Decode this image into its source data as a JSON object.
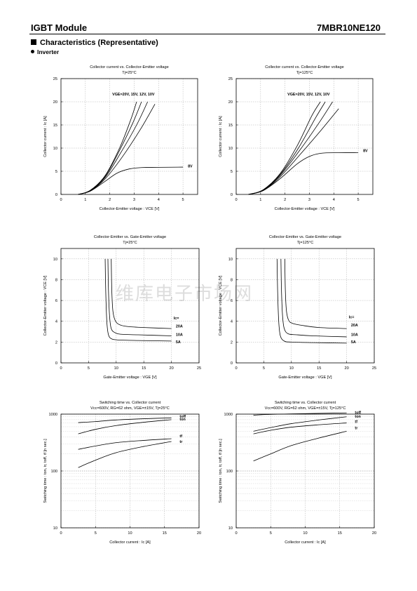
{
  "header": {
    "title": "IGBT Module",
    "part_number": "7MBR10NE120"
  },
  "section": {
    "title": "Characteristics (Representative)",
    "subtitle": "Inverter"
  },
  "watermark": "维库电子市场网",
  "chart_data": [
    {
      "type": "line",
      "title": "Collector current  vs.  Collector-Emitter  voltage",
      "subtitle": "Tj=25°C",
      "xlabel": "Collector-Emitter  voltage  :  VCE [V]",
      "ylabel": "Collector  current  :  Ic [A]",
      "xlim": [
        0,
        5.6
      ],
      "ylim": [
        0,
        25
      ],
      "xticks": [
        0,
        1,
        2,
        3,
        4,
        5
      ],
      "yticks": [
        0,
        5,
        10,
        15,
        20,
        25
      ],
      "grid": true,
      "yscale": "linear",
      "annotations": [
        {
          "text": "VGE=20V, 15V, 12V, 10V",
          "x": 2.1,
          "y": 21.4
        },
        {
          "text": "8V",
          "x": 5.2,
          "y": 5.8
        }
      ],
      "series": [
        {
          "label": "20V",
          "x": [
            0.7,
            1.2,
            1.8,
            2.4,
            2.85,
            3.1
          ],
          "y": [
            0,
            0.9,
            4,
            10,
            16,
            20
          ]
        },
        {
          "label": "15V",
          "x": [
            0.7,
            1.2,
            1.8,
            2.4,
            2.95,
            3.3
          ],
          "y": [
            0,
            0.85,
            3.8,
            9.5,
            15.5,
            20
          ]
        },
        {
          "label": "12V",
          "x": [
            0.7,
            1.2,
            1.8,
            2.45,
            3.1,
            3.55
          ],
          "y": [
            0,
            0.8,
            3.6,
            9,
            15,
            20
          ]
        },
        {
          "label": "10V",
          "x": [
            0.7,
            1.2,
            1.8,
            2.5,
            3.25,
            3.85
          ],
          "y": [
            0,
            0.75,
            3.3,
            8,
            14,
            19.5
          ]
        },
        {
          "label": "8V",
          "x": [
            0.7,
            1.2,
            1.8,
            2.3,
            2.8,
            3.3,
            4.0,
            5.0
          ],
          "y": [
            0,
            0.7,
            2.8,
            4.6,
            5.5,
            5.8,
            5.85,
            5.9
          ]
        }
      ]
    },
    {
      "type": "line",
      "title": "Collector current  vs.  Collector-Emitter  voltage",
      "subtitle": "Tj=125°C",
      "xlabel": "Collector-Emitter  voltage  :  VCE [V]",
      "ylabel": "Collector  current  :  Ic [A]",
      "xlim": [
        0,
        5.6
      ],
      "ylim": [
        0,
        25
      ],
      "xticks": [
        0,
        1,
        2,
        3,
        4,
        5
      ],
      "yticks": [
        0,
        5,
        10,
        15,
        20,
        25
      ],
      "grid": true,
      "yscale": "linear",
      "annotations": [
        {
          "text": "VGE=20V, 15V, 12V, 10V",
          "x": 2.1,
          "y": 21.4
        },
        {
          "text": "8V",
          "x": 5.2,
          "y": 9.2
        }
      ],
      "series": [
        {
          "label": "20V",
          "x": [
            0.5,
            1.1,
            1.8,
            2.5,
            3.1,
            3.45
          ],
          "y": [
            0,
            1,
            4.5,
            10.5,
            17,
            20
          ]
        },
        {
          "label": "15V",
          "x": [
            0.5,
            1.1,
            1.8,
            2.55,
            3.25,
            3.65
          ],
          "y": [
            0,
            0.95,
            4.3,
            10,
            16.5,
            20
          ]
        },
        {
          "label": "12V",
          "x": [
            0.5,
            1.1,
            1.8,
            2.6,
            3.4,
            3.95
          ],
          "y": [
            0,
            0.9,
            4.1,
            9.5,
            15.5,
            20
          ]
        },
        {
          "label": "10V",
          "x": [
            0.5,
            1.1,
            1.8,
            2.65,
            3.5,
            4.2
          ],
          "y": [
            0,
            0.85,
            3.8,
            8.8,
            14,
            18.5
          ]
        },
        {
          "label": "8V",
          "x": [
            0.5,
            1.1,
            1.8,
            2.5,
            3.0,
            3.5,
            4.2,
            5.0
          ],
          "y": [
            0,
            0.8,
            3.4,
            6.6,
            8.2,
            8.9,
            9.0,
            9.0
          ]
        }
      ]
    },
    {
      "type": "line",
      "title": "Collector-Emitter  vs.  Gate-Emitter  voltage",
      "subtitle": "Tj=25°C",
      "xlabel": "Gate-Emitter  voltage  :  VGE [V]",
      "ylabel": "Collector-Emitter  voltage  :  VCE [V]",
      "xlim": [
        0,
        25
      ],
      "ylim": [
        0,
        11
      ],
      "xticks": [
        0,
        5,
        10,
        15,
        20,
        25
      ],
      "yticks": [
        0,
        2,
        4,
        6,
        8,
        10
      ],
      "grid": true,
      "yscale": "linear",
      "annotations": [
        {
          "text": "Ic=",
          "x": 20.4,
          "y": 4.2
        },
        {
          "text": "20A",
          "x": 20.8,
          "y": 3.4
        },
        {
          "text": "10A",
          "x": 20.8,
          "y": 2.6
        },
        {
          "text": "5A",
          "x": 20.8,
          "y": 1.9
        }
      ],
      "series": [
        {
          "label": "20A",
          "x": [
            9.1,
            9.2,
            9.4,
            9.8,
            10.5,
            12,
            15,
            20
          ],
          "y": [
            10,
            7,
            5,
            4.1,
            3.7,
            3.5,
            3.4,
            3.3
          ]
        },
        {
          "label": "10A",
          "x": [
            8.5,
            8.6,
            8.8,
            9.1,
            9.8,
            11,
            14,
            20
          ],
          "y": [
            10,
            7,
            4.5,
            3.3,
            2.9,
            2.75,
            2.7,
            2.6
          ]
        },
        {
          "label": "5A",
          "x": [
            8.0,
            8.1,
            8.3,
            8.6,
            9.2,
            10.5,
            14,
            20
          ],
          "y": [
            10,
            7,
            4,
            2.7,
            2.3,
            2.2,
            2.15,
            2.1
          ]
        }
      ]
    },
    {
      "type": "line",
      "title": "Collector-Emitter  vs.  Gate-Emitter  voltage",
      "subtitle": "Tj=125°C",
      "xlabel": "Gate-Emitter  voltage  :  VGE [V]",
      "ylabel": "Collector-Emitter  voltage  :  VCE [V]",
      "xlim": [
        0,
        25
      ],
      "ylim": [
        0,
        11
      ],
      "xticks": [
        0,
        5,
        10,
        15,
        20,
        25
      ],
      "yticks": [
        0,
        2,
        4,
        6,
        8,
        10
      ],
      "grid": true,
      "yscale": "linear",
      "annotations": [
        {
          "text": "Ic=",
          "x": 20.4,
          "y": 4.3
        },
        {
          "text": "20A",
          "x": 20.8,
          "y": 3.5
        },
        {
          "text": "10A",
          "x": 20.8,
          "y": 2.6
        },
        {
          "text": "5A",
          "x": 20.8,
          "y": 1.9
        }
      ],
      "series": [
        {
          "label": "20A",
          "x": [
            8.8,
            8.9,
            9.1,
            9.5,
            10.2,
            12,
            15,
            20
          ],
          "y": [
            10,
            7,
            5,
            4.1,
            3.8,
            3.6,
            3.4,
            3.3
          ]
        },
        {
          "label": "10A",
          "x": [
            8.1,
            8.2,
            8.4,
            8.7,
            9.4,
            11,
            14,
            20
          ],
          "y": [
            10,
            7,
            4.5,
            3.3,
            2.8,
            2.7,
            2.6,
            2.5
          ]
        },
        {
          "label": "5A",
          "x": [
            7.4,
            7.5,
            7.7,
            8.0,
            8.7,
            10,
            14,
            20
          ],
          "y": [
            10,
            7,
            4,
            2.6,
            2.1,
            2.0,
            1.95,
            1.9
          ]
        }
      ]
    },
    {
      "type": "line",
      "title": "Switching time  vs. Collector current",
      "subtitle": "Vcc=600V, RG=62 ohm, VGE=±15V, Tj=25°C",
      "xlabel": "Collector  current  :  Ic [A]",
      "ylabel": "Switching  time  :  ton, tr, toff, tf  [n sec.]",
      "xlim": [
        0,
        20
      ],
      "ylim": [
        10,
        1000
      ],
      "xticks": [
        0,
        5,
        10,
        15,
        20
      ],
      "yticks": [
        10,
        100,
        1000
      ],
      "grid": true,
      "yscale": "log",
      "annotations": [
        {
          "text": "toff",
          "x": 17.2,
          "y": 870
        },
        {
          "text": "ton",
          "x": 17.2,
          "y": 770
        },
        {
          "text": "tf",
          "x": 17.2,
          "y": 390
        },
        {
          "text": "tr",
          "x": 17.2,
          "y": 310
        }
      ],
      "series": [
        {
          "label": "toff",
          "x": [
            2.5,
            5,
            8,
            12,
            16
          ],
          "y": [
            710,
            740,
            790,
            830,
            860
          ]
        },
        {
          "label": "ton",
          "x": [
            2.5,
            5,
            8,
            12,
            16
          ],
          "y": [
            450,
            540,
            630,
            720,
            800
          ]
        },
        {
          "label": "tf",
          "x": [
            2.5,
            5,
            8,
            12,
            16
          ],
          "y": [
            240,
            275,
            315,
            345,
            370
          ]
        },
        {
          "label": "tr",
          "x": [
            2.5,
            5,
            8,
            12,
            16
          ],
          "y": [
            115,
            155,
            210,
            270,
            330
          ]
        }
      ]
    },
    {
      "type": "line",
      "title": "Switching time  vs. Collector current",
      "subtitle": "Vcc=600V, RG=62 ohm, VGE=±15V, Tj=125°C",
      "xlabel": "Collector  current  :  Ic [A]",
      "ylabel": "Switching  time  :  ton, tr, toff, tf  [n sec.]",
      "xlim": [
        0,
        20
      ],
      "ylim": [
        10,
        1000
      ],
      "xticks": [
        0,
        5,
        10,
        15,
        20
      ],
      "yticks": [
        10,
        100,
        1000
      ],
      "grid": true,
      "yscale": "log",
      "annotations": [
        {
          "text": "toff",
          "x": 17.2,
          "y": 1020
        },
        {
          "text": "ton",
          "x": 17.2,
          "y": 870
        },
        {
          "text": "tf",
          "x": 17.2,
          "y": 700
        },
        {
          "text": "tr",
          "x": 17.2,
          "y": 540
        }
      ],
      "series": [
        {
          "label": "toff",
          "x": [
            2.5,
            5,
            8,
            12,
            16
          ],
          "y": [
            960,
            990,
            1010,
            1030,
            1050
          ]
        },
        {
          "label": "ton",
          "x": [
            2.5,
            5,
            8,
            12,
            16
          ],
          "y": [
            500,
            580,
            680,
            790,
            900
          ]
        },
        {
          "label": "tf",
          "x": [
            2.5,
            5,
            8,
            12,
            16
          ],
          "y": [
            450,
            520,
            590,
            650,
            700
          ]
        },
        {
          "label": "tr",
          "x": [
            2.5,
            5,
            8,
            12,
            16
          ],
          "y": [
            150,
            200,
            280,
            380,
            500
          ]
        }
      ]
    }
  ]
}
